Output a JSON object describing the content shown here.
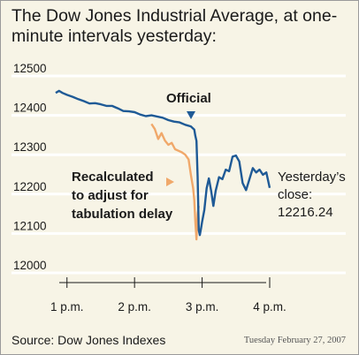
{
  "chart_data": {
    "type": "line",
    "title": "The Dow Jones Industrial Average, at one-minute intervals yesterday:",
    "xlabel": "",
    "ylabel": "",
    "x_ticks": [
      "1 p.m.",
      "2 p.m.",
      "3 p.m.",
      "4 p.m."
    ],
    "y_ticks": [
      12500,
      12400,
      12300,
      12200,
      12100,
      12000
    ],
    "xlim": [
      "12:50",
      "16:00"
    ],
    "ylim": [
      12000,
      12500
    ],
    "grid": "horizontal",
    "colors": {
      "official": "#1f5a96",
      "recalculated": "#f0a86a",
      "grid": "#ffffff"
    },
    "series": [
      {
        "name": "Official",
        "color": "#1f5a96",
        "points": [
          [
            "12:50",
            12457
          ],
          [
            "12:53",
            12462
          ],
          [
            "12:56",
            12457
          ],
          [
            "13:00",
            12452
          ],
          [
            "13:05",
            12447
          ],
          [
            "13:10",
            12441
          ],
          [
            "13:15",
            12436
          ],
          [
            "13:20",
            12430
          ],
          [
            "13:25",
            12431
          ],
          [
            "13:30",
            12428
          ],
          [
            "13:35",
            12424
          ],
          [
            "13:40",
            12424
          ],
          [
            "13:45",
            12418
          ],
          [
            "13:50",
            12411
          ],
          [
            "13:55",
            12410
          ],
          [
            "14:00",
            12408
          ],
          [
            "14:05",
            12402
          ],
          [
            "14:10",
            12398
          ],
          [
            "14:15",
            12400
          ],
          [
            "14:20",
            12397
          ],
          [
            "14:25",
            12394
          ],
          [
            "14:30",
            12388
          ],
          [
            "14:35",
            12384
          ],
          [
            "14:40",
            12382
          ],
          [
            "14:45",
            12376
          ],
          [
            "14:50",
            12372
          ],
          [
            "14:53",
            12364
          ],
          [
            "14:54",
            12348
          ],
          [
            "14:55",
            12335
          ],
          [
            "14:56",
            12244
          ],
          [
            "14:57",
            12108
          ],
          [
            "14:58",
            12096
          ],
          [
            "14:59",
            12112
          ],
          [
            "15:00",
            12130
          ],
          [
            "15:02",
            12160
          ],
          [
            "15:04",
            12215
          ],
          [
            "15:06",
            12240
          ],
          [
            "15:08",
            12208
          ],
          [
            "15:10",
            12170
          ],
          [
            "15:12",
            12208
          ],
          [
            "15:15",
            12243
          ],
          [
            "15:18",
            12238
          ],
          [
            "15:21",
            12262
          ],
          [
            "15:24",
            12258
          ],
          [
            "15:27",
            12295
          ],
          [
            "15:30",
            12298
          ],
          [
            "15:33",
            12283
          ],
          [
            "15:36",
            12228
          ],
          [
            "15:39",
            12210
          ],
          [
            "15:42",
            12238
          ],
          [
            "15:45",
            12266
          ],
          [
            "15:48",
            12255
          ],
          [
            "15:51",
            12262
          ],
          [
            "15:54",
            12249
          ],
          [
            "15:57",
            12255
          ],
          [
            "16:00",
            12216
          ]
        ]
      },
      {
        "name": "Recalculated to adjust for tabulation delay",
        "color": "#f0a86a",
        "points": [
          [
            "14:15",
            12378
          ],
          [
            "14:18",
            12365
          ],
          [
            "14:21",
            12340
          ],
          [
            "14:24",
            12355
          ],
          [
            "14:27",
            12336
          ],
          [
            "14:30",
            12325
          ],
          [
            "14:33",
            12330
          ],
          [
            "14:36",
            12314
          ],
          [
            "14:39",
            12310
          ],
          [
            "14:42",
            12306
          ],
          [
            "14:45",
            12300
          ],
          [
            "14:48",
            12288
          ],
          [
            "14:50",
            12250
          ],
          [
            "14:52",
            12215
          ],
          [
            "14:53",
            12185
          ],
          [
            "14:54",
            12130
          ],
          [
            "14:55",
            12085
          ],
          [
            "14:56",
            12150
          ],
          [
            "14:57",
            12170
          ]
        ]
      }
    ],
    "annotations": {
      "official_label": "Official",
      "recalc_label_lines": [
        "Recalculated",
        "to adjust for",
        "tabulation delay"
      ],
      "close_label_lines": [
        "Yesterday’s",
        "close:",
        "12216.24"
      ]
    }
  },
  "footer": {
    "source": "Source: Dow Jones Indexes",
    "date": "Tuesday February 27, 2007"
  }
}
